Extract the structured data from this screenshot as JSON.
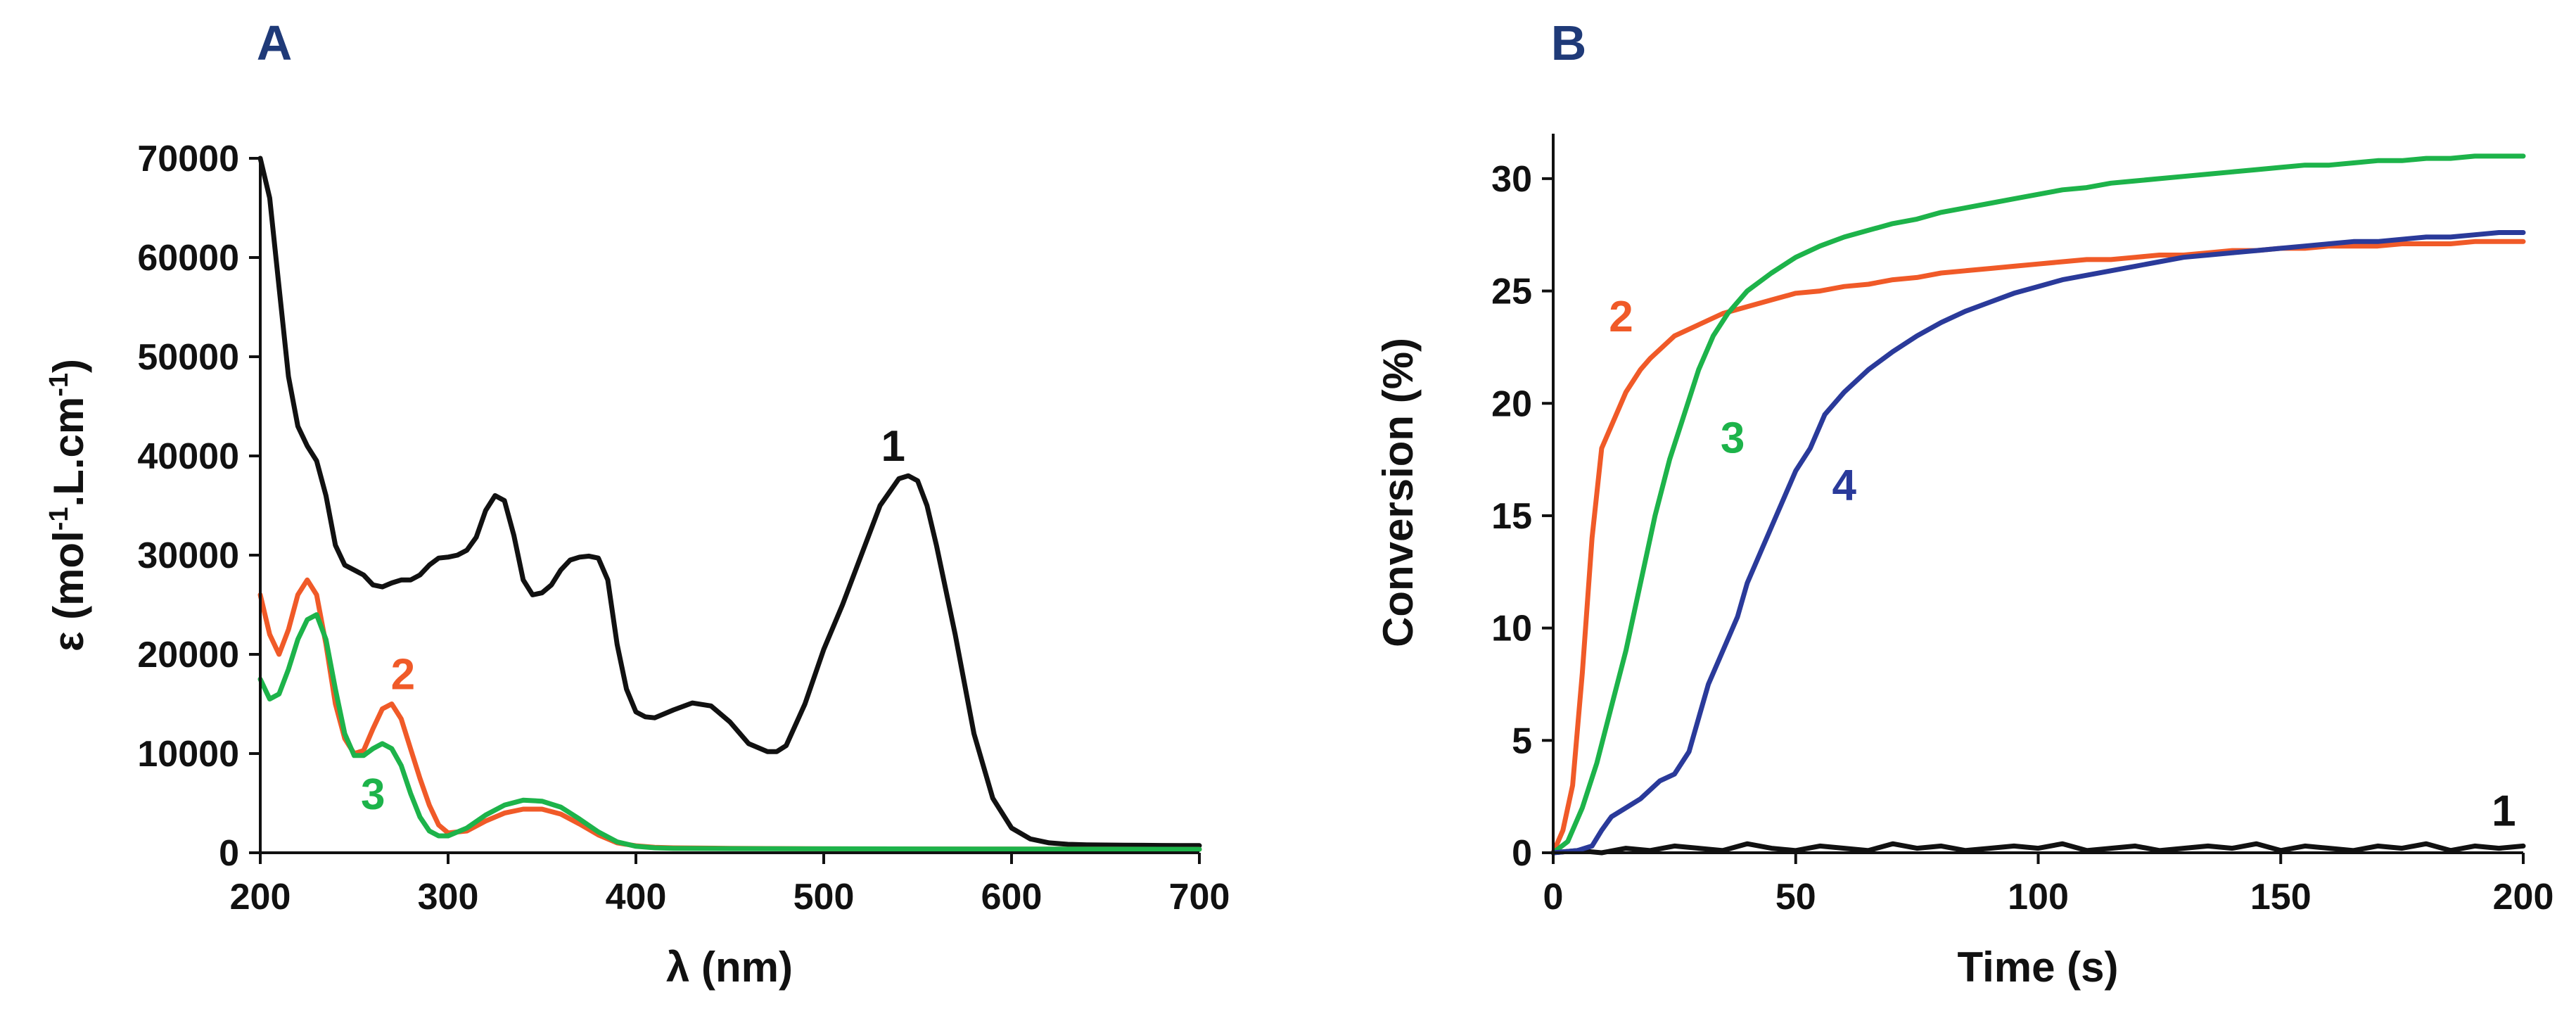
{
  "colors": {
    "black": "#111111",
    "orange": "#f05a28",
    "green": "#1db34a",
    "navy": "#2a3a9a",
    "panel_letter": "#1f3a78"
  },
  "chart_data": [
    {
      "type": "line",
      "panel_label": "A",
      "xlabel": "λ (nm)",
      "ylabel": "ε (mol-1.L.cm-1)",
      "ylabel_parts": {
        "pre": "ε (mol",
        "sup1": "-1",
        "mid": ".L.cm",
        "sup2": "-1",
        "post": ")"
      },
      "xlim": [
        200,
        700
      ],
      "ylim": [
        0,
        70000
      ],
      "x_ticks": [
        "200",
        "300",
        "400",
        "500",
        "600",
        "700"
      ],
      "y_ticks": [
        "0",
        "10000",
        "20000",
        "30000",
        "40000",
        "50000",
        "60000",
        "70000"
      ],
      "grid": false,
      "legend": "none",
      "series": [
        {
          "name": "1",
          "color": "#111111",
          "x": [
            200,
            205,
            210,
            215,
            220,
            225,
            230,
            235,
            240,
            245,
            250,
            255,
            260,
            265,
            270,
            275,
            280,
            285,
            290,
            295,
            300,
            305,
            310,
            315,
            320,
            325,
            330,
            335,
            340,
            345,
            350,
            355,
            360,
            365,
            370,
            375,
            380,
            385,
            390,
            395,
            400,
            405,
            410,
            420,
            430,
            440,
            450,
            460,
            470,
            475,
            480,
            490,
            500,
            510,
            520,
            530,
            540,
            545,
            550,
            555,
            560,
            570,
            580,
            590,
            600,
            610,
            620,
            630,
            640,
            650,
            660,
            670,
            680,
            690,
            700
          ],
          "y": [
            70000,
            66000,
            57000,
            48000,
            43000,
            41000,
            39500,
            36000,
            31000,
            29000,
            28500,
            28000,
            27000,
            26800,
            27200,
            27500,
            27500,
            28000,
            29000,
            29700,
            29800,
            30000,
            30500,
            31800,
            34500,
            36000,
            35500,
            32000,
            27500,
            26000,
            26200,
            27000,
            28500,
            29500,
            29800,
            29900,
            29700,
            27500,
            21000,
            16500,
            14200,
            13700,
            13600,
            14400,
            15100,
            14800,
            13200,
            11000,
            10200,
            10200,
            10800,
            15000,
            20500,
            25000,
            30000,
            35000,
            37700,
            38000,
            37500,
            35000,
            31000,
            22000,
            12000,
            5500,
            2500,
            1400,
            1000,
            850,
            800,
            780,
            760,
            750,
            740,
            730,
            720
          ]
        },
        {
          "name": "2",
          "color": "#f05a28",
          "x": [
            200,
            205,
            210,
            215,
            220,
            225,
            230,
            235,
            240,
            245,
            250,
            255,
            260,
            265,
            270,
            275,
            280,
            285,
            290,
            295,
            300,
            310,
            320,
            330,
            340,
            350,
            360,
            370,
            380,
            390,
            400,
            410,
            420,
            450,
            500,
            550,
            600,
            650,
            700
          ],
          "y": [
            26000,
            22000,
            20000,
            22500,
            26000,
            27500,
            26000,
            21000,
            15000,
            11500,
            10000,
            10300,
            12500,
            14500,
            15000,
            13500,
            10500,
            7500,
            4800,
            2800,
            2000,
            2200,
            3200,
            4000,
            4400,
            4400,
            3900,
            2900,
            1800,
            1000,
            700,
            550,
            500,
            450,
            400,
            380,
            370,
            360,
            350
          ]
        },
        {
          "name": "3",
          "color": "#1db34a",
          "x": [
            200,
            205,
            210,
            215,
            220,
            225,
            230,
            235,
            240,
            245,
            250,
            255,
            260,
            265,
            270,
            275,
            280,
            285,
            290,
            295,
            300,
            310,
            320,
            330,
            340,
            350,
            360,
            370,
            380,
            390,
            400,
            410,
            420,
            450,
            500,
            550,
            600,
            650,
            700
          ],
          "y": [
            17500,
            15500,
            16000,
            18500,
            21500,
            23500,
            24000,
            21500,
            16500,
            12000,
            9800,
            9800,
            10500,
            11000,
            10500,
            8800,
            6000,
            3600,
            2200,
            1700,
            1700,
            2500,
            3800,
            4800,
            5300,
            5200,
            4600,
            3400,
            2100,
            1100,
            650,
            500,
            450,
            420,
            400,
            380,
            370,
            360,
            350
          ]
        }
      ],
      "annotations": [
        {
          "text": "1",
          "x": 537,
          "y": 39500
        },
        {
          "text": "2",
          "x": 276,
          "y": 16500
        },
        {
          "text": "3",
          "x": 260,
          "y": 4400
        }
      ]
    },
    {
      "type": "line",
      "panel_label": "B",
      "xlabel": "Time (s)",
      "ylabel": "Conversion (%)",
      "xlim": [
        0,
        200
      ],
      "ylim": [
        0,
        32
      ],
      "x_ticks": [
        "0",
        "50",
        "100",
        "150",
        "200"
      ],
      "y_ticks": [
        "0",
        "5",
        "10",
        "15",
        "20",
        "25",
        "30"
      ],
      "grid": false,
      "legend": "none",
      "series": [
        {
          "name": "1",
          "color": "#111111",
          "x": [
            0,
            5,
            10,
            15,
            20,
            25,
            30,
            35,
            40,
            45,
            50,
            55,
            60,
            65,
            70,
            75,
            80,
            85,
            90,
            95,
            100,
            105,
            110,
            115,
            120,
            125,
            130,
            135,
            140,
            145,
            150,
            155,
            160,
            165,
            170,
            175,
            180,
            185,
            190,
            195,
            200
          ],
          "y": [
            0,
            0.1,
            0,
            0.2,
            0.1,
            0.3,
            0.2,
            0.1,
            0.4,
            0.2,
            0.1,
            0.3,
            0.2,
            0.1,
            0.4,
            0.2,
            0.3,
            0.1,
            0.2,
            0.3,
            0.2,
            0.4,
            0.1,
            0.2,
            0.3,
            0.1,
            0.2,
            0.3,
            0.2,
            0.4,
            0.1,
            0.3,
            0.2,
            0.1,
            0.3,
            0.2,
            0.4,
            0.1,
            0.3,
            0.2,
            0.3
          ]
        },
        {
          "name": "2",
          "color": "#f05a28",
          "x": [
            0,
            2,
            4,
            6,
            8,
            10,
            12,
            15,
            18,
            20,
            25,
            30,
            35,
            40,
            45,
            50,
            55,
            60,
            65,
            70,
            75,
            80,
            85,
            90,
            95,
            100,
            105,
            110,
            115,
            120,
            125,
            130,
            135,
            140,
            145,
            150,
            155,
            160,
            165,
            170,
            175,
            180,
            185,
            190,
            195,
            200
          ],
          "y": [
            0,
            1,
            3,
            8,
            14,
            18,
            19,
            20.5,
            21.5,
            22,
            23,
            23.5,
            24,
            24.3,
            24.6,
            24.9,
            25,
            25.2,
            25.3,
            25.5,
            25.6,
            25.8,
            25.9,
            26,
            26.1,
            26.2,
            26.3,
            26.4,
            26.4,
            26.5,
            26.6,
            26.6,
            26.7,
            26.8,
            26.8,
            26.9,
            26.9,
            27,
            27,
            27,
            27.1,
            27.1,
            27.1,
            27.2,
            27.2,
            27.2
          ]
        },
        {
          "name": "3",
          "color": "#1db34a",
          "x": [
            0,
            3,
            6,
            9,
            12,
            15,
            18,
            21,
            24,
            27,
            30,
            33,
            36,
            40,
            45,
            50,
            55,
            60,
            65,
            70,
            75,
            80,
            85,
            90,
            95,
            100,
            105,
            110,
            115,
            120,
            125,
            130,
            135,
            140,
            145,
            150,
            155,
            160,
            165,
            170,
            175,
            180,
            185,
            190,
            195,
            200
          ],
          "y": [
            0,
            0.5,
            2,
            4,
            6.5,
            9,
            12,
            15,
            17.5,
            19.5,
            21.5,
            23,
            24,
            25,
            25.8,
            26.5,
            27,
            27.4,
            27.7,
            28,
            28.2,
            28.5,
            28.7,
            28.9,
            29.1,
            29.3,
            29.5,
            29.6,
            29.8,
            29.9,
            30,
            30.1,
            30.2,
            30.3,
            30.4,
            30.5,
            30.6,
            30.6,
            30.7,
            30.8,
            30.8,
            30.9,
            30.9,
            31,
            31,
            31
          ]
        },
        {
          "name": "4",
          "color": "#2a3a9a",
          "x": [
            0,
            5,
            8,
            10,
            12,
            15,
            18,
            20,
            22,
            25,
            28,
            30,
            32,
            35,
            38,
            40,
            43,
            46,
            50,
            53,
            56,
            60,
            65,
            70,
            75,
            80,
            85,
            90,
            95,
            100,
            105,
            110,
            115,
            120,
            125,
            130,
            135,
            140,
            145,
            150,
            155,
            160,
            165,
            170,
            175,
            180,
            185,
            190,
            195,
            200
          ],
          "y": [
            0,
            0.1,
            0.3,
            1,
            1.6,
            2,
            2.4,
            2.8,
            3.2,
            3.5,
            4.5,
            6,
            7.5,
            9,
            10.5,
            12,
            13.5,
            15,
            17,
            18,
            19.5,
            20.5,
            21.5,
            22.3,
            23,
            23.6,
            24.1,
            24.5,
            24.9,
            25.2,
            25.5,
            25.7,
            25.9,
            26.1,
            26.3,
            26.5,
            26.6,
            26.7,
            26.8,
            26.9,
            27,
            27.1,
            27.2,
            27.2,
            27.3,
            27.4,
            27.4,
            27.5,
            27.6,
            27.6
          ]
        }
      ],
      "annotations": [
        {
          "text": "2",
          "x": 14,
          "y": 23.2
        },
        {
          "text": "3",
          "x": 37,
          "y": 17.8
        },
        {
          "text": "4",
          "x": 60,
          "y": 15.7
        },
        {
          "text": "1",
          "x": 196,
          "y": 1.2
        }
      ]
    }
  ]
}
